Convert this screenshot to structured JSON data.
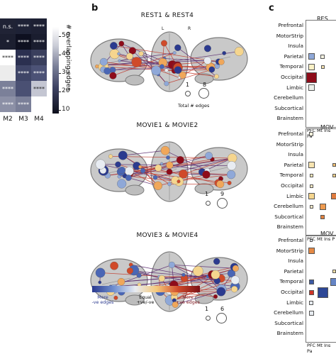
{
  "panel_letters": {
    "b": "b",
    "c": "c"
  },
  "panel_a": {
    "col_labels": [
      "M2",
      "M3",
      "M4"
    ],
    "cells": [
      [
        {
          "text": "n.s.",
          "color": "#202335"
        },
        {
          "text": "****",
          "color": "#1e2236"
        },
        {
          "text": "****",
          "color": "#1d2033"
        }
      ],
      [
        {
          "text": "*",
          "color": "#1c1f30"
        },
        {
          "text": "****",
          "color": "#0e1020"
        },
        {
          "text": "****",
          "color": "#1a1d2f"
        }
      ],
      [
        {
          "text": "****",
          "color": "#ffffff"
        },
        {
          "text": "****",
          "color": "#2b3050"
        },
        {
          "text": "****",
          "color": "#3a3f5d"
        }
      ],
      [
        {
          "text": "",
          "color": "#ececec"
        },
        {
          "text": "****",
          "color": "#3f4567"
        },
        {
          "text": "****",
          "color": "#4c5276"
        }
      ],
      [
        {
          "text": "****",
          "color": "#7b8099"
        },
        {
          "text": "",
          "color": "#4a5073"
        },
        {
          "text": "****",
          "color": "#c4c6d2"
        }
      ],
      [
        {
          "text": "****",
          "color": "#8c90a6"
        },
        {
          "text": "****",
          "color": "#7a7f98"
        },
        {
          "text": "",
          "color": "#ffffff"
        }
      ]
    ],
    "colorbar": {
      "label": "# overlapping edges",
      "ticks": [
        "50",
        "40",
        "30",
        "20",
        "10"
      ],
      "range": [
        8,
        55
      ]
    }
  },
  "panel_b": {
    "titles": [
      "REST1 & REST4",
      "MOVIE1 & MOVIE2",
      "MOVIE3 & MOVIE4"
    ],
    "hemisphere_labels": {
      "left": "L",
      "right": "R"
    },
    "size_legends": [
      {
        "min": "1",
        "max": "8",
        "caption": "Total # edges"
      },
      {
        "min": "1",
        "max": "9",
        "caption": ""
      },
      {
        "min": "1",
        "max": "6",
        "caption": ""
      }
    ],
    "edge_colorbar": {
      "left": "More\n-ve edges",
      "center": "Equal\n+ve/-ve",
      "right": "More\n+ve edges",
      "colors": [
        "#2b3a8f",
        "#6f8fd0",
        "#e8ecf2",
        "#f5c87a",
        "#d04a2a",
        "#7a0f16"
      ]
    }
  },
  "panel_c": {
    "title_fragments": [
      "RES",
      "MOV",
      "MOV"
    ],
    "regions": [
      "Prefrontal",
      "MotorStrip",
      "Insula",
      "Parietal",
      "Temporal",
      "Occipital",
      "Limbic",
      "Cerebellum",
      "Subcortical",
      "Brainstem"
    ],
    "col_labels": "PFC Mt Ins Pa",
    "col_labels_short": "PFC Mt Ins P",
    "matrices": [
      [
        {
          "row": 3,
          "col": 0,
          "size": 9,
          "color": "#8fa8d8"
        },
        {
          "row": 3,
          "col": 1,
          "size": 6,
          "color": "#f3f1e0"
        },
        {
          "row": 4,
          "col": 0,
          "size": 9,
          "color": "#fbf1c6"
        },
        {
          "row": 4,
          "col": 1,
          "size": 5,
          "color": "#f6e3b0"
        },
        {
          "row": 5,
          "col": 0,
          "size": 15,
          "color": "#8e0c1a"
        },
        {
          "row": 6,
          "col": 0,
          "size": 9,
          "color": "#ecf0ea"
        }
      ],
      [
        {
          "row": 0,
          "col": 0,
          "size": 6,
          "color": "#f7f1dc"
        },
        {
          "row": 3,
          "col": 0,
          "size": 9,
          "color": "#f7e4b0"
        },
        {
          "row": 3,
          "col": 2,
          "size": 5,
          "color": "#f2c173"
        },
        {
          "row": 3,
          "col": 3,
          "size": 5,
          "color": "#dfe6f0"
        },
        {
          "row": 4,
          "col": 0,
          "size": 5,
          "color": "#fbe9b9"
        },
        {
          "row": 4,
          "col": 2,
          "size": 5,
          "color": "#f3d08a"
        },
        {
          "row": 5,
          "col": 0,
          "size": 5,
          "color": "#f7e8c3"
        },
        {
          "row": 6,
          "col": 0,
          "size": 9,
          "color": "#f5d58e"
        },
        {
          "row": 6,
          "col": 2,
          "size": 9,
          "color": "#df7b3f"
        },
        {
          "row": 6,
          "col": 3,
          "size": 11,
          "color": "#c52a26"
        },
        {
          "row": 7,
          "col": 0,
          "size": 5,
          "color": "#f6e8c9"
        },
        {
          "row": 7,
          "col": 1,
          "size": 9,
          "color": "#ee9a4f"
        },
        {
          "row": 8,
          "col": 1,
          "size": 6,
          "color": "#e1813f"
        }
      ],
      [
        {
          "row": 0,
          "col": 0,
          "size": 4,
          "color": "#e7eaf0"
        },
        {
          "row": 1,
          "col": 0,
          "size": 9,
          "color": "#e58945"
        },
        {
          "row": 3,
          "col": 2,
          "size": 5,
          "color": "#f6e0a6"
        },
        {
          "row": 4,
          "col": 0,
          "size": 7,
          "color": "#3d5aa4"
        },
        {
          "row": 4,
          "col": 2,
          "size": 11,
          "color": "#6584c4"
        },
        {
          "row": 5,
          "col": 0,
          "size": 7,
          "color": "#cf3427"
        },
        {
          "row": 5,
          "col": 1,
          "size": 15,
          "color": "#2d4796"
        },
        {
          "row": 5,
          "col": 3,
          "size": 13,
          "color": "#2d4796"
        },
        {
          "row": 6,
          "col": 0,
          "size": 6,
          "color": "#e7ebf0"
        },
        {
          "row": 7,
          "col": 0,
          "size": 7,
          "color": "#e8ecf1"
        }
      ]
    ]
  }
}
